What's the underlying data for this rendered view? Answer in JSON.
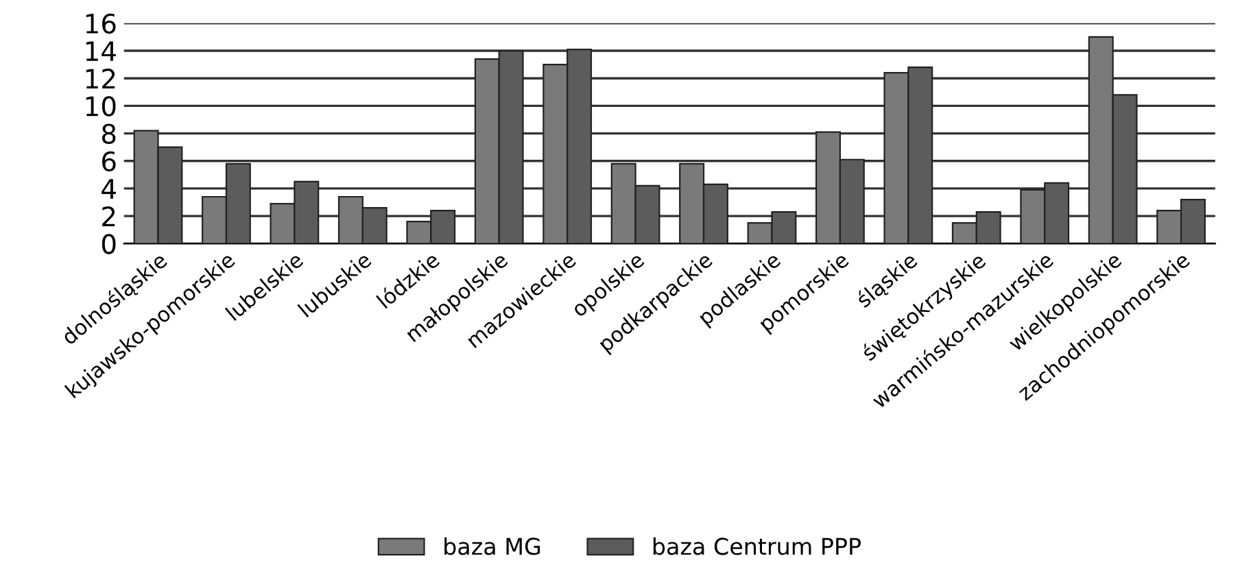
{
  "chart_data": {
    "type": "bar",
    "categories": [
      "dolnośląskie",
      "kujawsko-pomorskie",
      "lubelskie",
      "lubuskie",
      "lódzkie",
      "małopolskie",
      "mazowieckie",
      "opolskie",
      "podkarpackie",
      "podlaskie",
      "pomorskie",
      "śląskie",
      "świętokrzyskie",
      "warmińsko-mazurskie",
      "wielkopolskie",
      "zachodniopomorskie"
    ],
    "series": [
      {
        "name": "baza MG",
        "color": "#7a7a7a",
        "values": [
          8.2,
          3.4,
          2.9,
          3.4,
          1.6,
          13.4,
          13.0,
          5.8,
          5.8,
          1.5,
          8.1,
          12.4,
          1.5,
          3.9,
          15.0,
          2.4
        ]
      },
      {
        "name": "baza Centrum PPP",
        "color": "#5c5c5c",
        "values": [
          7.0,
          5.8,
          4.5,
          2.6,
          2.4,
          14.0,
          14.1,
          4.2,
          4.3,
          2.3,
          6.1,
          12.8,
          2.3,
          4.4,
          10.8,
          3.2
        ]
      }
    ],
    "ylim": [
      0,
      16
    ],
    "yticks": [
      0,
      2,
      4,
      6,
      8,
      10,
      12,
      14,
      16
    ],
    "grid": "y",
    "legend": "bottom"
  }
}
